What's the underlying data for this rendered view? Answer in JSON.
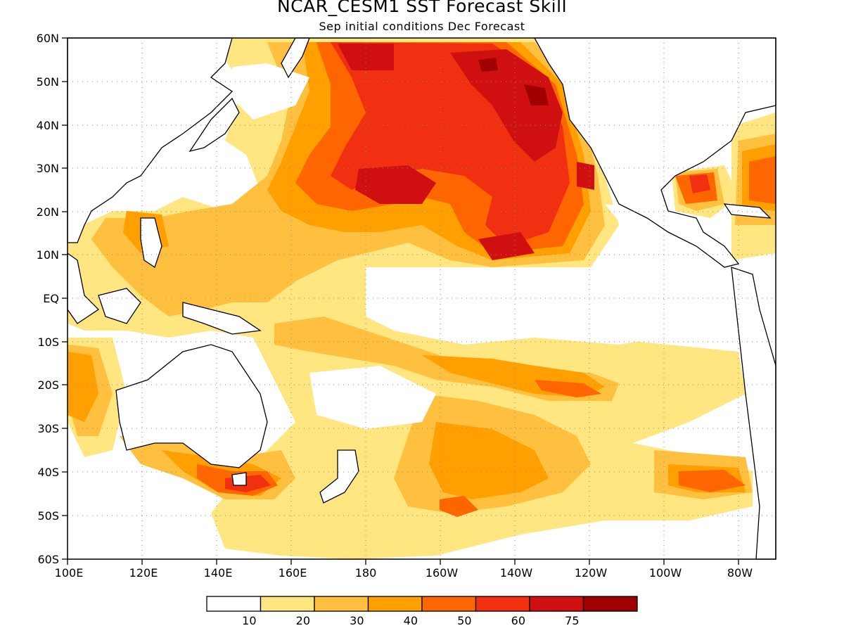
{
  "title": "NCAR_CESM1  SST Forecast Skill",
  "subtitle": "Sep initial conditions  Dec Forecast",
  "axes": {
    "lat_ticks": [
      "60N",
      "50N",
      "40N",
      "30N",
      "20N",
      "10N",
      "EQ",
      "10S",
      "20S",
      "30S",
      "40S",
      "50S",
      "60S"
    ],
    "lon_ticks": [
      "100E",
      "120E",
      "140E",
      "160E",
      "180",
      "160W",
      "140W",
      "120W",
      "100W",
      "80W"
    ]
  },
  "legend": {
    "labels": [
      "10",
      "20",
      "30",
      "40",
      "50",
      "60",
      "75"
    ],
    "colors": [
      "#ffffff",
      "#ffe680",
      "#ffc040",
      "#ffa000",
      "#ff6600",
      "#f03010",
      "#d01010",
      "#a00000"
    ]
  },
  "map": {
    "region": "Pacific Ocean",
    "lat_range": [
      -60,
      60
    ],
    "lon_range_east": [
      100,
      290
    ],
    "gridlines": "dotted"
  }
}
